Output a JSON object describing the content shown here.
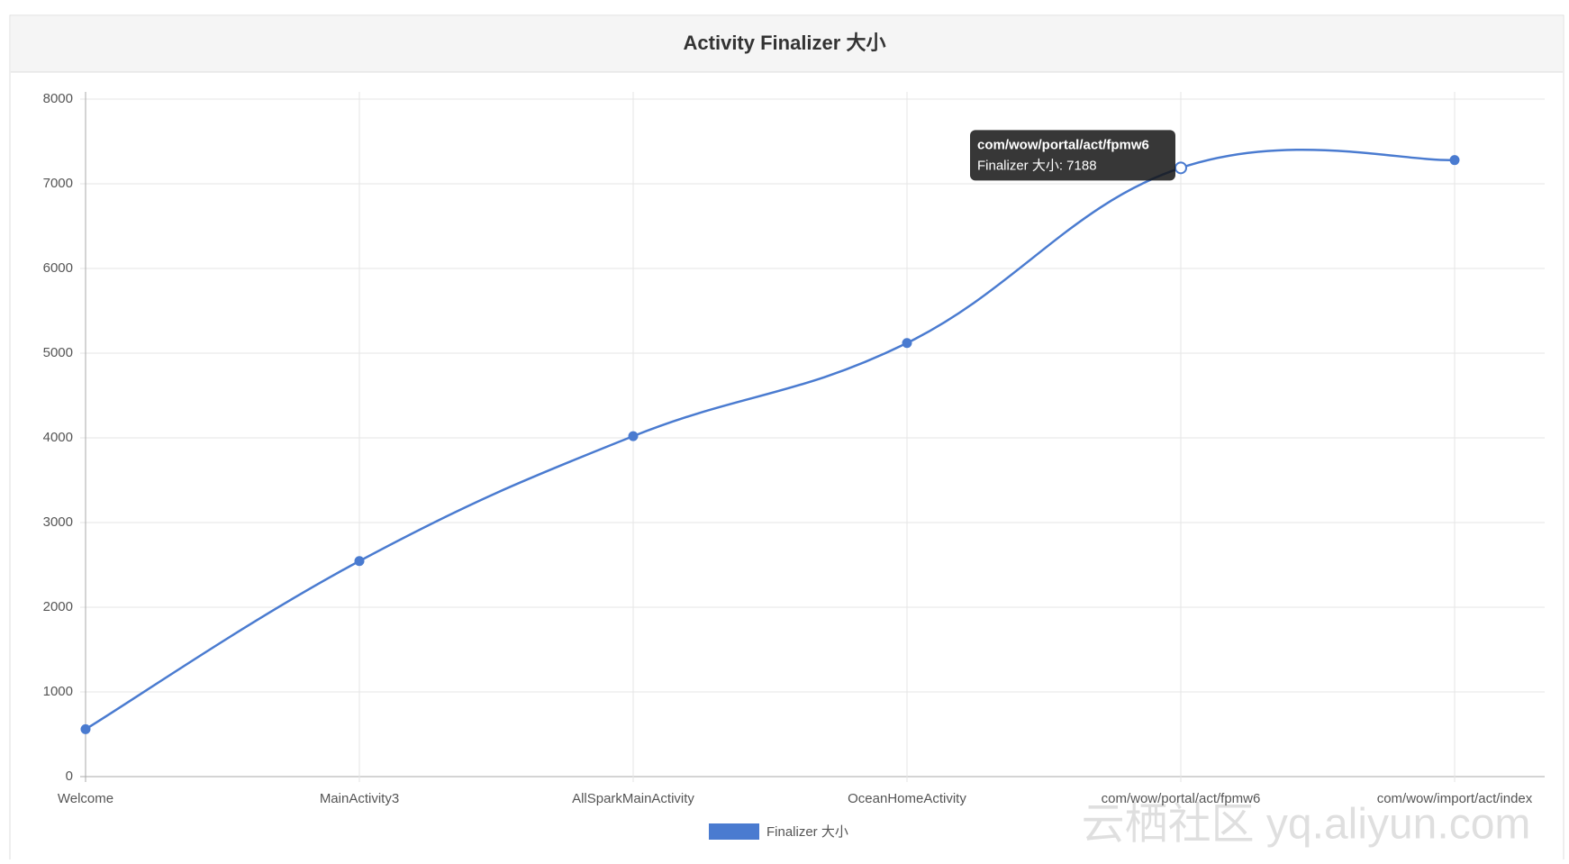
{
  "chart_data": {
    "type": "line",
    "title": "Activity Finalizer 大小",
    "categories": [
      "Welcome",
      "MainActivity3",
      "AllSparkMainActivity",
      "OceanHomeActivity",
      "com/wow/portal/act/fpmw6",
      "com/wow/import/act/index"
    ],
    "series": [
      {
        "name": "Finalizer 大小",
        "color": "#4a7bd0",
        "values": [
          560,
          2545,
          4020,
          5120,
          7188,
          7280
        ]
      }
    ],
    "ylim": [
      0,
      8000
    ],
    "yticks": [
      0,
      1000,
      2000,
      3000,
      4000,
      5000,
      6000,
      7000,
      8000
    ],
    "grid": true,
    "tooltip": {
      "title": "com/wow/portal/act/fpmw6",
      "label": "Finalizer 大小: 7188"
    }
  },
  "watermark": "云栖社区 yq.aliyun.com"
}
